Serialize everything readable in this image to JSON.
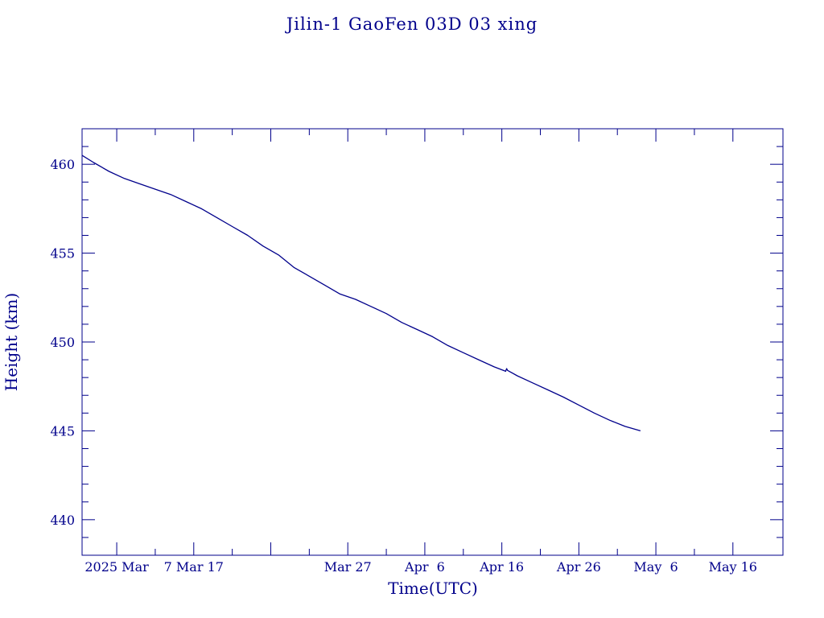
{
  "chart_data": {
    "type": "line",
    "title": "Jilin-1 GaoFen 03D 03 xing",
    "xlabel": "Time(UTC)",
    "ylabel": "Height (km)",
    "x_unit": "date (UTC)",
    "xlim": [
      "2025-02-20T12:00",
      "2025-05-22T12:00"
    ],
    "ylim": [
      438,
      462
    ],
    "x_ticks": [
      {
        "date": "2025-02-25",
        "label": "2025 Mar"
      },
      {
        "date": "2025-03-07",
        "label": "7 Mar 17"
      },
      {
        "date": "2025-03-17",
        "label": ""
      },
      {
        "date": "2025-03-27",
        "label": "Mar 27"
      },
      {
        "date": "2025-04-06",
        "label": "Apr  6"
      },
      {
        "date": "2025-04-16",
        "label": "Apr 16"
      },
      {
        "date": "2025-04-26",
        "label": "Apr 26"
      },
      {
        "date": "2025-05-06",
        "label": "May  6"
      },
      {
        "date": "2025-05-16",
        "label": "May 16"
      }
    ],
    "y_ticks": [
      440,
      445,
      450,
      455,
      460
    ],
    "grid": false,
    "colors": {
      "line": "#00008b",
      "axes": "#00008b",
      "text": "#00008b",
      "background": "#ffffff"
    },
    "series": [
      {
        "x": [
          "2025-02-20T12:00",
          "2025-02-22",
          "2025-02-24",
          "2025-02-26",
          "2025-02-28",
          "2025-03-02",
          "2025-03-04",
          "2025-03-06",
          "2025-03-08",
          "2025-03-10",
          "2025-03-12",
          "2025-03-14",
          "2025-03-16",
          "2025-03-18",
          "2025-03-20",
          "2025-03-22",
          "2025-03-24",
          "2025-03-26",
          "2025-03-28",
          "2025-03-30",
          "2025-04-01",
          "2025-04-03",
          "2025-04-05",
          "2025-04-07",
          "2025-04-09",
          "2025-04-11",
          "2025-04-13",
          "2025-04-15",
          "2025-04-16T12:00",
          "2025-04-16T15:00",
          "2025-04-16T18:00",
          "2025-04-18",
          "2025-04-20",
          "2025-04-22",
          "2025-04-24",
          "2025-04-26",
          "2025-04-28",
          "2025-04-30",
          "2025-05-02",
          "2025-05-04"
        ],
        "y": [
          460.5,
          460.1,
          459.6,
          459.2,
          458.9,
          458.6,
          458.3,
          457.9,
          457.5,
          457.0,
          456.5,
          456.0,
          455.4,
          454.9,
          454.2,
          453.7,
          453.2,
          452.7,
          452.4,
          452.0,
          451.6,
          451.1,
          450.7,
          450.3,
          449.8,
          449.4,
          449.0,
          448.6,
          448.35,
          448.5,
          448.4,
          448.1,
          447.7,
          447.3,
          446.9,
          446.45,
          446.0,
          445.6,
          445.25,
          445.0
        ]
      }
    ]
  }
}
